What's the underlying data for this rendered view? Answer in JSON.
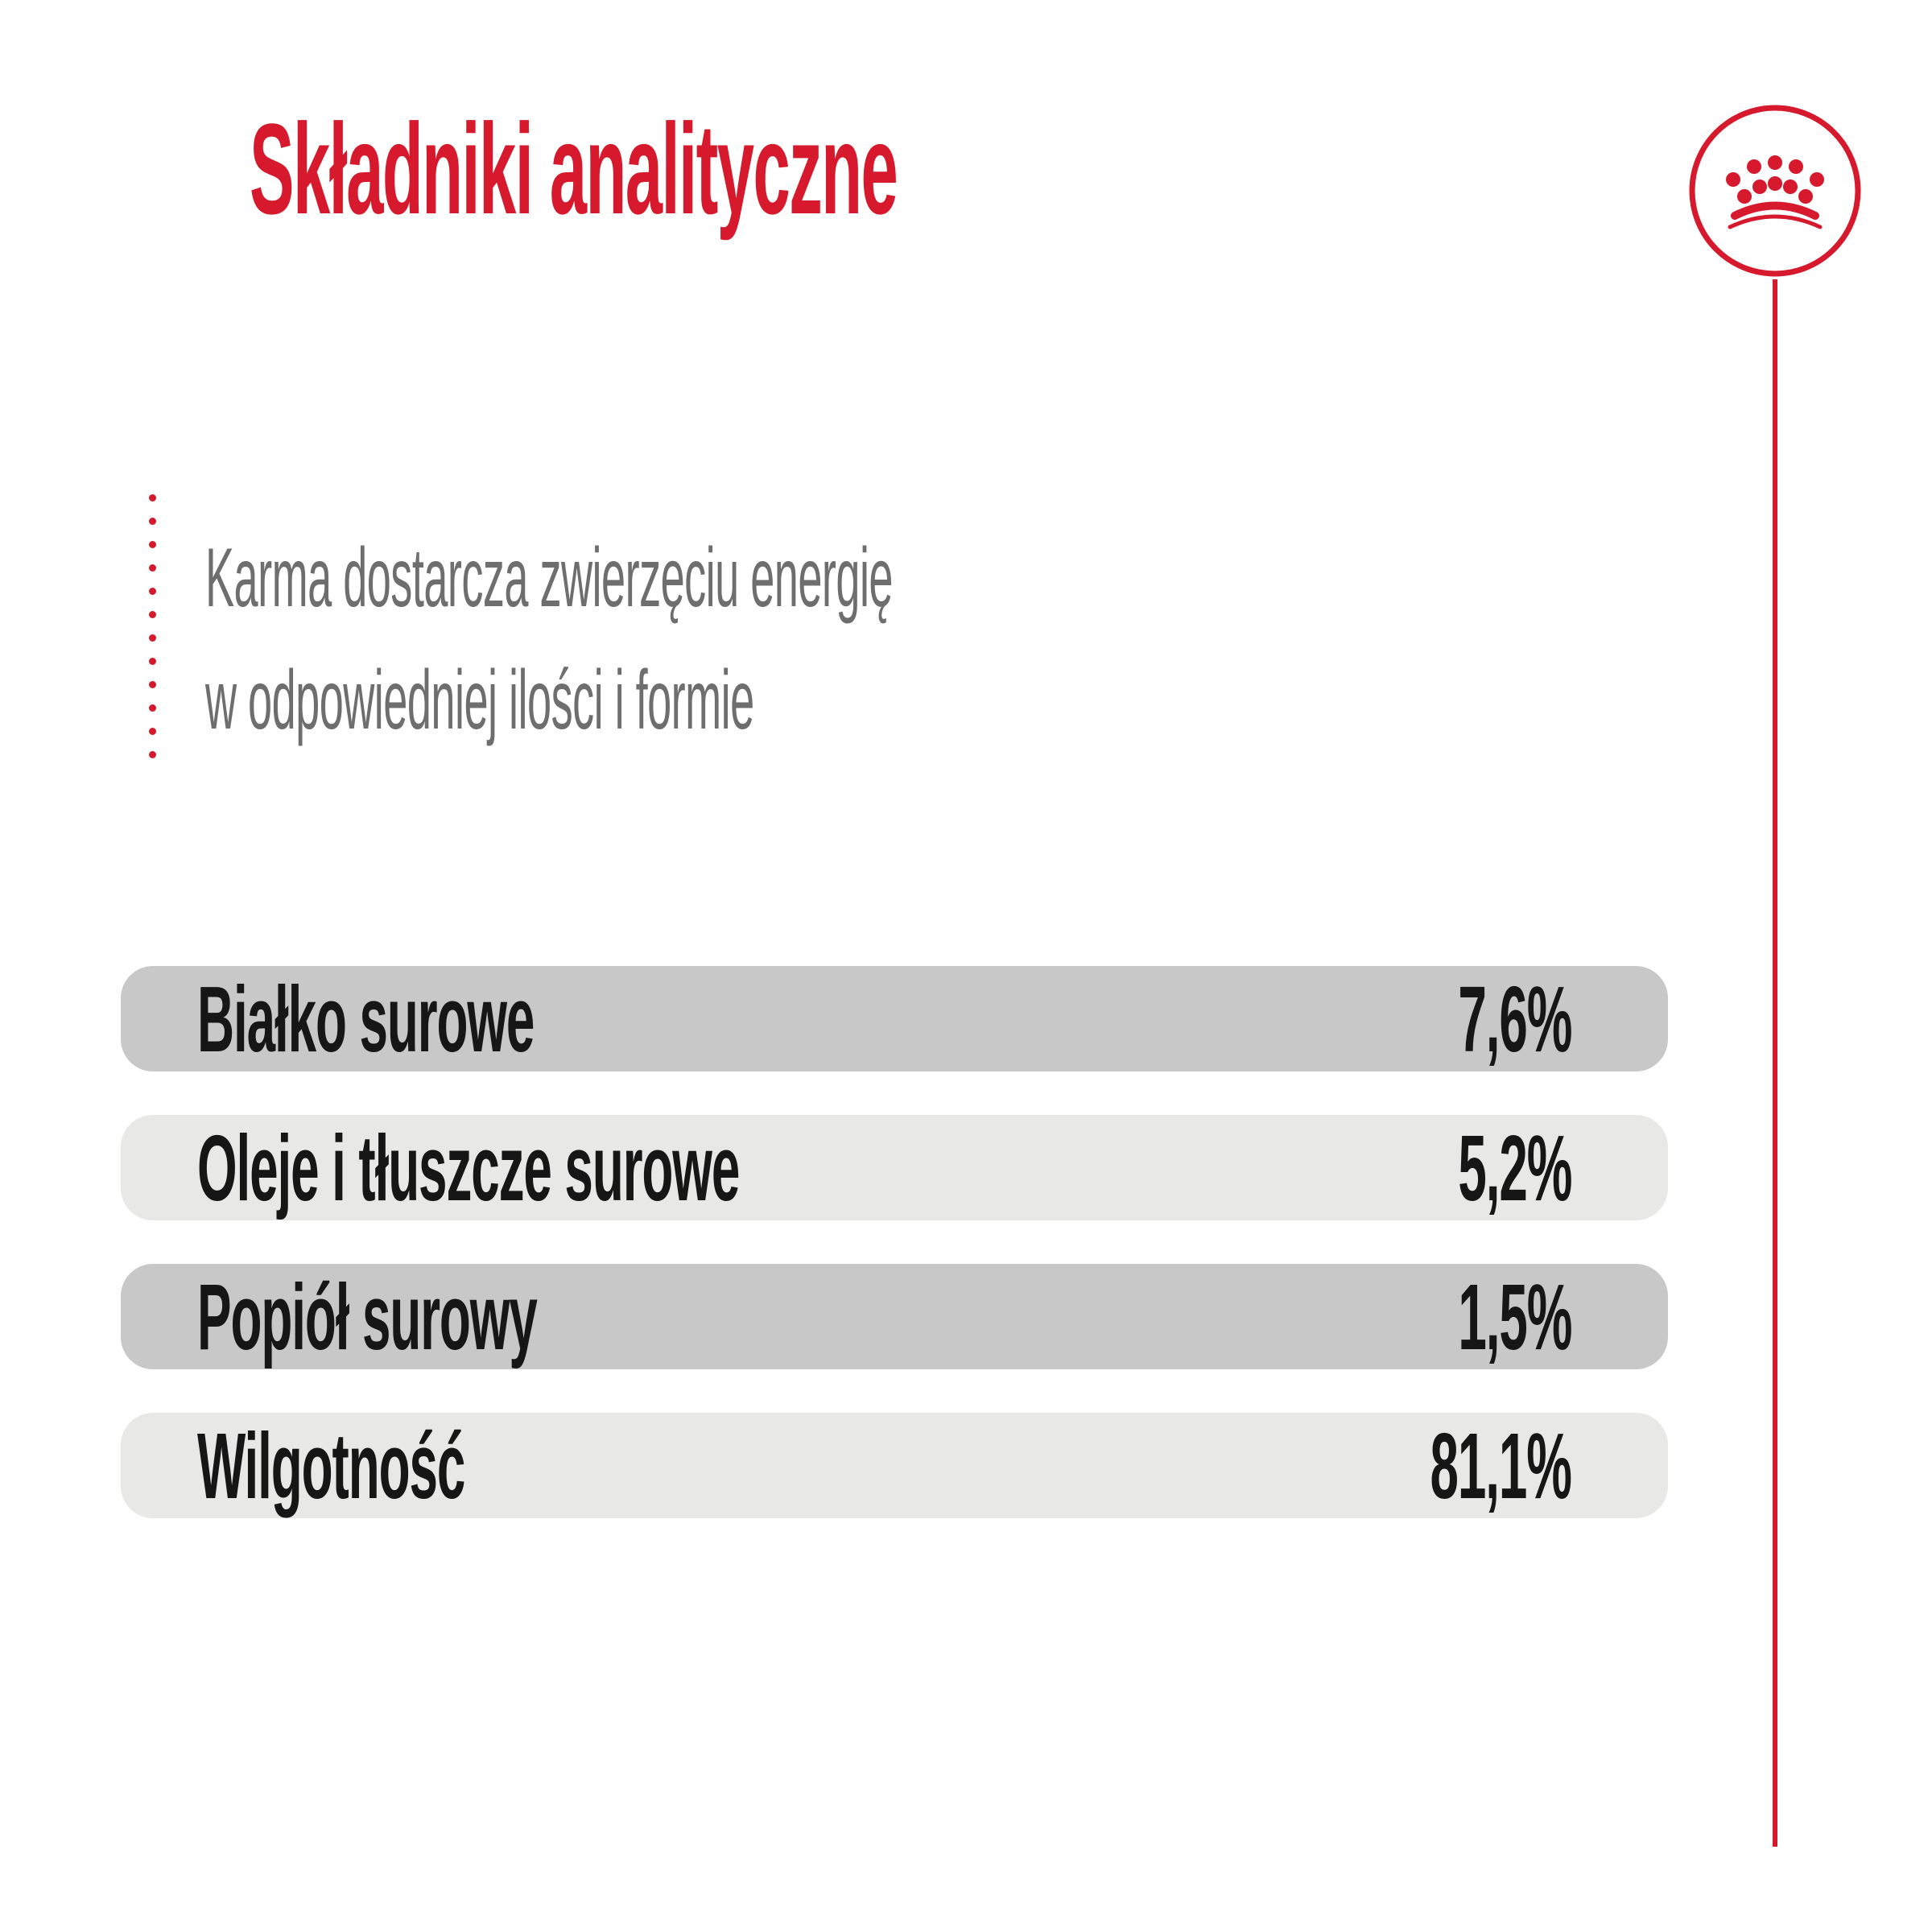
{
  "title": "Składniki analityczne",
  "subtitle": {
    "line1": "Karma dostarcza zwierzęciu energię",
    "line2": "w odpowiedniej ilości i formie"
  },
  "logo": {
    "icon": "royal-canin-crown"
  },
  "table": {
    "rows": [
      {
        "label": "Białko surowe",
        "value": "7,6%"
      },
      {
        "label": "Oleje i tłuszcze surowe",
        "value": "5,2%"
      },
      {
        "label": "Popiół surowy",
        "value": "1,5%"
      },
      {
        "label": "Wilgotność",
        "value": "81,1%"
      }
    ]
  },
  "colors": {
    "red": "#d6192c",
    "row_dark": "#c8c8c8",
    "row_light": "#e8e8e6",
    "text_dark": "#161616",
    "subtitle_gray": "#6e6e6e"
  }
}
